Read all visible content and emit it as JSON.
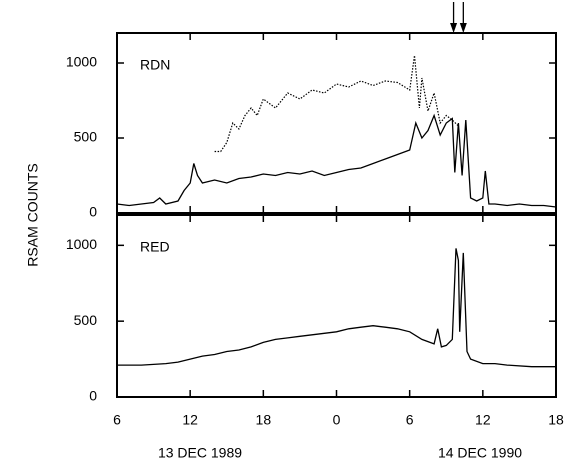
{
  "chart_data": [
    {
      "type": "line",
      "label": "RDN",
      "ylabel": "RSAM COUNTS",
      "xlim": [
        6,
        42
      ],
      "ylim": [
        0,
        1200
      ],
      "yticks": [
        0,
        500,
        1000
      ],
      "markers": [
        33.6,
        34.4
      ],
      "series": [
        {
          "style": "solid",
          "color": "#000000",
          "x": [
            6,
            7,
            8,
            9,
            9.5,
            10,
            11,
            11.5,
            12,
            12.3,
            12.6,
            13,
            14,
            15,
            16,
            17,
            18,
            19,
            20,
            21,
            22,
            23,
            24,
            25,
            26,
            27,
            28,
            29,
            30,
            30.5,
            31,
            31.5,
            32,
            32.5,
            33,
            33.5,
            33.7,
            34,
            34.3,
            34.6,
            35,
            35.5,
            36,
            36.2,
            36.5,
            37,
            38,
            39,
            40,
            41,
            42
          ],
          "values": [
            60,
            50,
            60,
            70,
            100,
            60,
            80,
            150,
            200,
            330,
            250,
            200,
            220,
            200,
            230,
            240,
            260,
            250,
            270,
            260,
            280,
            250,
            270,
            290,
            300,
            330,
            360,
            390,
            420,
            600,
            500,
            550,
            650,
            520,
            600,
            630,
            270,
            600,
            250,
            620,
            100,
            80,
            100,
            280,
            60,
            60,
            50,
            60,
            50,
            50,
            40
          ]
        },
        {
          "style": "dotted",
          "color": "#000000",
          "x": [
            14,
            14.5,
            15,
            15.5,
            16,
            16.5,
            17,
            17.5,
            18,
            19,
            20,
            21,
            22,
            23,
            24,
            25,
            26,
            27,
            28,
            29,
            30,
            30.4,
            30.8,
            31,
            31.5,
            32,
            32.5,
            33,
            33.5,
            34
          ],
          "values": [
            410,
            410,
            470,
            600,
            560,
            650,
            700,
            650,
            760,
            700,
            800,
            760,
            820,
            800,
            860,
            840,
            880,
            850,
            880,
            870,
            820,
            1050,
            700,
            900,
            680,
            800,
            600,
            650,
            620,
            580
          ]
        }
      ]
    },
    {
      "type": "line",
      "label": "RED",
      "xlim": [
        6,
        42
      ],
      "ylim": [
        0,
        1200
      ],
      "yticks": [
        0,
        500,
        1000
      ],
      "xticks": [
        {
          "value": 6,
          "label": "6"
        },
        {
          "value": 12,
          "label": "12"
        },
        {
          "value": 18,
          "label": "18"
        },
        {
          "value": 24,
          "label": "0"
        },
        {
          "value": 30,
          "label": "6"
        },
        {
          "value": 36,
          "label": "12"
        },
        {
          "value": 42,
          "label": "18"
        }
      ],
      "date_labels": [
        "13 DEC 1989",
        "14 DEC 1990"
      ],
      "series": [
        {
          "style": "solid",
          "color": "#000000",
          "x": [
            6,
            8,
            9,
            10,
            11,
            12,
            13,
            14,
            15,
            16,
            17,
            18,
            19,
            20,
            21,
            22,
            23,
            24,
            25,
            26,
            27,
            28,
            29,
            30,
            31,
            32,
            32.3,
            32.6,
            33,
            33.5,
            33.8,
            34,
            34.1,
            34.4,
            34.7,
            35,
            36,
            37,
            38,
            40,
            42
          ],
          "values": [
            210,
            210,
            215,
            220,
            230,
            250,
            270,
            280,
            300,
            310,
            330,
            360,
            380,
            390,
            400,
            410,
            420,
            430,
            450,
            460,
            470,
            460,
            450,
            430,
            380,
            350,
            450,
            330,
            340,
            380,
            980,
            900,
            430,
            950,
            300,
            250,
            220,
            220,
            210,
            200,
            200
          ]
        }
      ]
    }
  ]
}
